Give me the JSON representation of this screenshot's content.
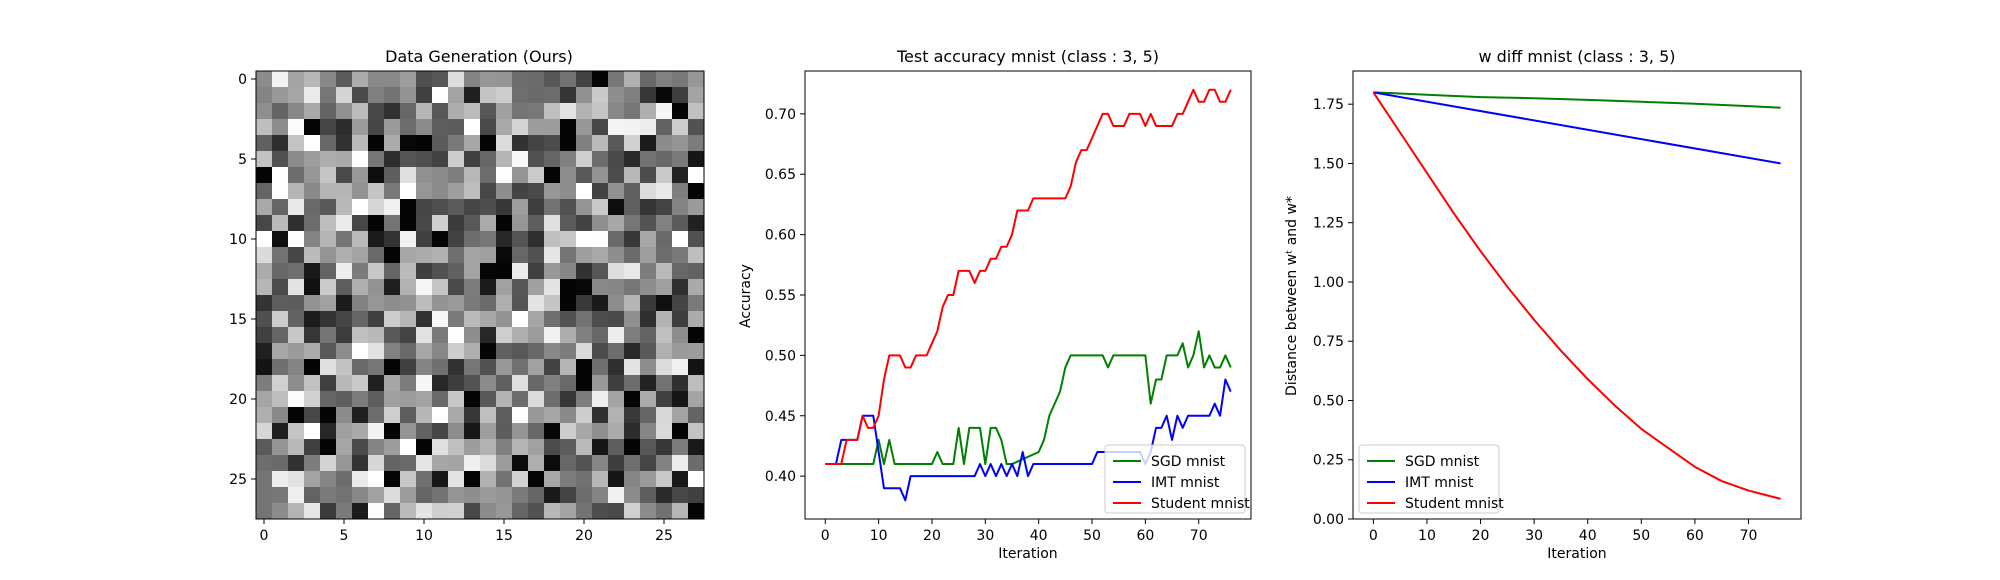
{
  "chart_data": [
    {
      "type": "heatmap",
      "title": "Data Generation (Ours)",
      "xlabel": "",
      "ylabel": "",
      "colormap": "gray",
      "shape": [
        28,
        28
      ],
      "xticks": [
        0,
        5,
        10,
        15,
        20,
        25
      ],
      "yticks": [
        0,
        5,
        10,
        15,
        20,
        25
      ],
      "xlim": [
        -0.5,
        27.5
      ],
      "ylim": [
        27.5,
        -0.5
      ]
    },
    {
      "type": "line",
      "title": "Test accuracy mnist (class : 3, 5)",
      "xlabel": "Iteration",
      "ylabel": "Accuracy",
      "xlim": [
        -3.8,
        79.8
      ],
      "ylim": [
        0.3645,
        0.7355
      ],
      "xticks": [
        0,
        10,
        20,
        30,
        40,
        50,
        60,
        70
      ],
      "yticks": [
        0.4,
        0.45,
        0.5,
        0.55,
        0.6,
        0.65,
        0.7
      ],
      "ytick_labels": [
        "0.40",
        "0.45",
        "0.50",
        "0.55",
        "0.60",
        "0.65",
        "0.70"
      ],
      "legend_position": "bottom-right",
      "series": [
        {
          "name": "SGD mnist",
          "color": "#008000",
          "x": [
            0,
            9,
            10,
            11,
            12,
            13,
            20,
            21,
            22,
            24,
            25,
            26,
            27,
            29,
            30,
            31,
            32,
            33,
            34,
            35,
            40,
            41,
            42,
            44,
            45,
            46,
            47,
            52,
            53,
            54,
            60,
            61,
            62,
            63,
            64,
            66,
            67,
            68,
            69,
            70,
            71,
            72,
            73,
            74,
            75,
            76
          ],
          "y": [
            0.41,
            0.41,
            0.43,
            0.41,
            0.43,
            0.41,
            0.41,
            0.42,
            0.41,
            0.41,
            0.44,
            0.41,
            0.44,
            0.44,
            0.41,
            0.44,
            0.44,
            0.43,
            0.41,
            0.41,
            0.42,
            0.43,
            0.45,
            0.47,
            0.49,
            0.5,
            0.5,
            0.5,
            0.49,
            0.5,
            0.5,
            0.46,
            0.48,
            0.48,
            0.5,
            0.5,
            0.51,
            0.49,
            0.5,
            0.52,
            0.49,
            0.5,
            0.49,
            0.49,
            0.5,
            0.49
          ]
        },
        {
          "name": "IMT mnist",
          "color": "#0000ff",
          "x": [
            0,
            2,
            3,
            6,
            7,
            9,
            10,
            11,
            14,
            15,
            16,
            28,
            29,
            30,
            31,
            32,
            33,
            34,
            35,
            36,
            37,
            38,
            39,
            50,
            51,
            59,
            60,
            61,
            62,
            63,
            64,
            65,
            66,
            67,
            68,
            69,
            70,
            71,
            72,
            73,
            74,
            75,
            76
          ],
          "y": [
            0.41,
            0.41,
            0.43,
            0.43,
            0.45,
            0.45,
            0.42,
            0.39,
            0.39,
            0.38,
            0.4,
            0.4,
            0.41,
            0.4,
            0.41,
            0.4,
            0.41,
            0.4,
            0.41,
            0.4,
            0.42,
            0.4,
            0.41,
            0.41,
            0.42,
            0.42,
            0.41,
            0.42,
            0.44,
            0.44,
            0.45,
            0.43,
            0.45,
            0.44,
            0.45,
            0.45,
            0.45,
            0.45,
            0.45,
            0.46,
            0.45,
            0.48,
            0.47
          ]
        },
        {
          "name": "Student mnist",
          "color": "#ff0000",
          "x": [
            0,
            3,
            4,
            5,
            6,
            7,
            8,
            9,
            10,
            11,
            12,
            13,
            14,
            15,
            16,
            17,
            18,
            19,
            20,
            21,
            22,
            23,
            24,
            25,
            26,
            27,
            28,
            29,
            30,
            31,
            32,
            33,
            34,
            35,
            36,
            37,
            38,
            39,
            40,
            41,
            42,
            43,
            44,
            45,
            46,
            47,
            48,
            49,
            50,
            51,
            52,
            53,
            54,
            55,
            56,
            57,
            58,
            59,
            60,
            61,
            62,
            63,
            64,
            65,
            66,
            67,
            68,
            69,
            70,
            71,
            72,
            73,
            74,
            75,
            76
          ],
          "y": [
            0.41,
            0.41,
            0.43,
            0.43,
            0.43,
            0.45,
            0.44,
            0.44,
            0.45,
            0.48,
            0.5,
            0.5,
            0.5,
            0.49,
            0.49,
            0.5,
            0.5,
            0.5,
            0.51,
            0.52,
            0.54,
            0.55,
            0.55,
            0.57,
            0.57,
            0.57,
            0.56,
            0.57,
            0.57,
            0.58,
            0.58,
            0.59,
            0.59,
            0.6,
            0.62,
            0.62,
            0.62,
            0.63,
            0.63,
            0.63,
            0.63,
            0.63,
            0.63,
            0.63,
            0.64,
            0.66,
            0.67,
            0.67,
            0.68,
            0.69,
            0.7,
            0.7,
            0.69,
            0.69,
            0.69,
            0.7,
            0.7,
            0.7,
            0.69,
            0.7,
            0.69,
            0.69,
            0.69,
            0.69,
            0.7,
            0.7,
            0.71,
            0.72,
            0.71,
            0.71,
            0.72,
            0.72,
            0.71,
            0.71,
            0.72
          ]
        }
      ]
    },
    {
      "type": "line",
      "title": "w diff mnist (class : 3, 5)",
      "xlabel": "Iteration",
      "ylabel": "Distance between wᵗ and w*",
      "xlim": [
        -3.8,
        79.8
      ],
      "ylim": [
        0.0,
        1.89
      ],
      "xticks": [
        0,
        10,
        20,
        30,
        40,
        50,
        60,
        70
      ],
      "yticks": [
        0.0,
        0.25,
        0.5,
        0.75,
        1.0,
        1.25,
        1.5,
        1.75
      ],
      "ytick_labels": [
        "0.00",
        "0.25",
        "0.50",
        "0.75",
        "1.00",
        "1.25",
        "1.50",
        "1.75"
      ],
      "legend_position": "bottom-left",
      "series": [
        {
          "name": "SGD mnist",
          "color": "#008000",
          "x": [
            0,
            10,
            20,
            30,
            40,
            50,
            60,
            70,
            76
          ],
          "y": [
            1.8,
            1.79,
            1.78,
            1.775,
            1.768,
            1.76,
            1.752,
            1.742,
            1.735
          ]
        },
        {
          "name": "IMT mnist",
          "color": "#0000ff",
          "x": [
            0,
            76
          ],
          "y": [
            1.8,
            1.5
          ]
        },
        {
          "name": "Student mnist",
          "color": "#ff0000",
          "x": [
            0,
            5,
            10,
            15,
            20,
            25,
            30,
            35,
            40,
            45,
            50,
            55,
            60,
            65,
            70,
            76
          ],
          "y": [
            1.8,
            1.63,
            1.46,
            1.29,
            1.13,
            0.98,
            0.84,
            0.71,
            0.59,
            0.48,
            0.38,
            0.3,
            0.22,
            0.16,
            0.12,
            0.085
          ]
        }
      ]
    }
  ]
}
